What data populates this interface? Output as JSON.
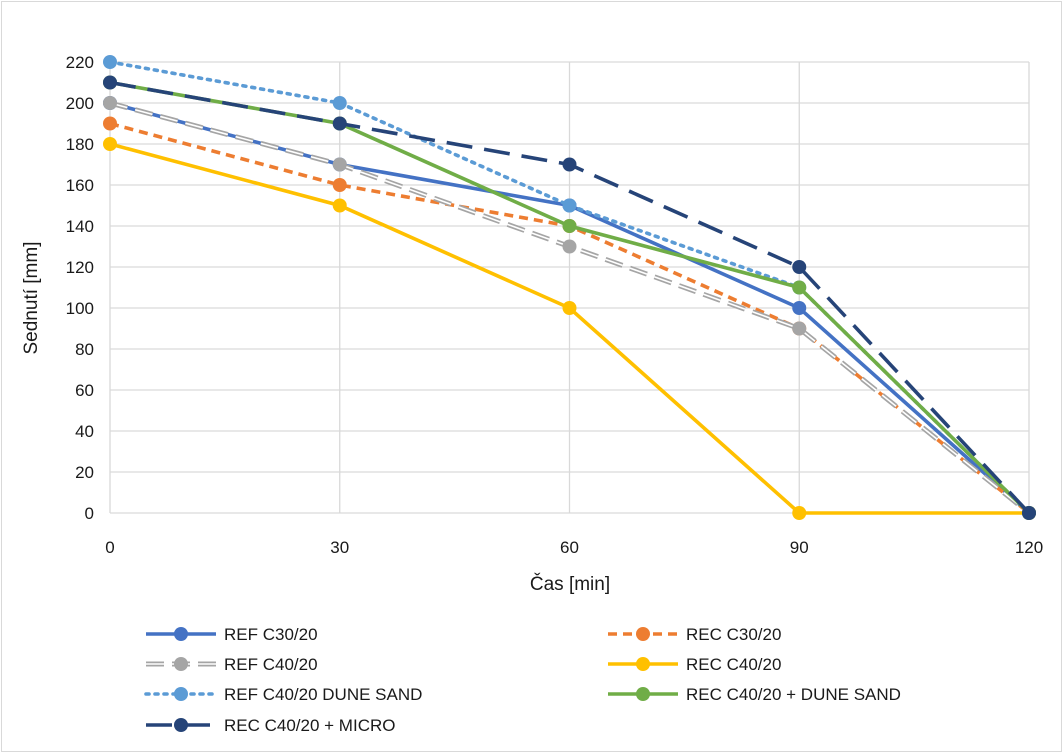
{
  "chart_data": {
    "type": "line",
    "title": "",
    "xlabel": "Čas [min]",
    "ylabel": "Sednutí [mm]",
    "x": [
      0,
      30,
      60,
      90,
      120
    ],
    "xlim": [
      0,
      120
    ],
    "ylim": [
      0,
      220
    ],
    "x_ticks": [
      0,
      30,
      60,
      90,
      120
    ],
    "y_ticks": [
      0,
      20,
      40,
      60,
      80,
      100,
      120,
      140,
      160,
      180,
      200,
      220
    ],
    "grid": true,
    "legend_position": "bottom",
    "series": [
      {
        "name": "REF C30/20",
        "values": [
          200,
          170,
          150,
          100,
          0
        ],
        "color": "#4472C4",
        "line_style": "solid"
      },
      {
        "name": "REC C30/20",
        "values": [
          190,
          160,
          140,
          90,
          0
        ],
        "color": "#ED7D31",
        "line_style": "dashed"
      },
      {
        "name": "REF C40/20",
        "values": [
          200,
          170,
          130,
          90,
          0
        ],
        "color": "#A5A5A5",
        "line_style": "double-dashed"
      },
      {
        "name": "REC C40/20",
        "values": [
          180,
          150,
          100,
          0,
          0
        ],
        "color": "#FFC000",
        "line_style": "solid"
      },
      {
        "name": "REF C40/20 DUNE SAND",
        "values": [
          220,
          200,
          150,
          110,
          0
        ],
        "color": "#5B9BD5",
        "line_style": "dotted"
      },
      {
        "name": "REC C40/20 + DUNE SAND",
        "values": [
          210,
          190,
          140,
          110,
          0
        ],
        "color": "#70AD47",
        "line_style": "solid"
      },
      {
        "name": "REC C40/20 + MICRO",
        "values": [
          210,
          190,
          170,
          120,
          0
        ],
        "color": "#264478",
        "line_style": "long-dashed"
      }
    ]
  }
}
